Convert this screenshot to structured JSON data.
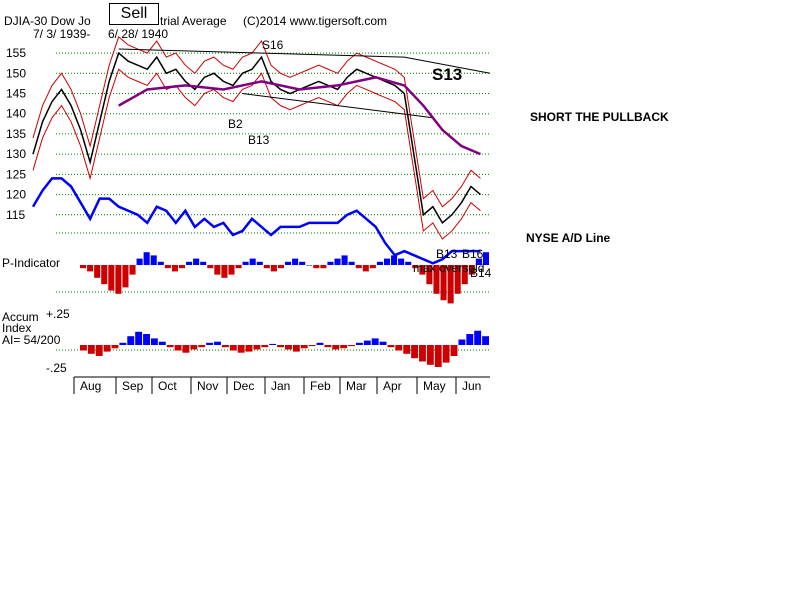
{
  "header": {
    "title": "DJIA-30  Dow Jones Industrial Average",
    "title_visible_prefix": "DJIA-30  Dow Jo",
    "title_visible_suffix": "trial Average",
    "copyright": "(C)2014 www.tigersoft.com",
    "date_range_left": "7/ 3/ 1939-",
    "date_range_right": "6/ 28/ 1940",
    "signal_box": "Sell"
  },
  "chart_data": {
    "type": "line",
    "x_months": [
      "Aug",
      "Sep",
      "Oct",
      "Nov",
      "Dec",
      "Jan",
      "Feb",
      "Mar",
      "Apr",
      "May",
      "Jun"
    ],
    "price_axis": {
      "ticks": [
        155,
        150,
        145,
        140,
        135,
        130,
        125,
        120,
        115
      ],
      "range": [
        110,
        157
      ]
    },
    "price_series": {
      "name": "DJIA",
      "color": "#000000",
      "points": [
        [
          0,
          130
        ],
        [
          5,
          138
        ],
        [
          10,
          143
        ],
        [
          15,
          146
        ],
        [
          20,
          142
        ],
        [
          25,
          136
        ],
        [
          30,
          128
        ],
        [
          35,
          138
        ],
        [
          40,
          148
        ],
        [
          45,
          155
        ],
        [
          50,
          153
        ],
        [
          55,
          152
        ],
        [
          60,
          151
        ],
        [
          65,
          154
        ],
        [
          70,
          150
        ],
        [
          75,
          151
        ],
        [
          80,
          148
        ],
        [
          85,
          146
        ],
        [
          90,
          149
        ],
        [
          95,
          150
        ],
        [
          100,
          148
        ],
        [
          105,
          147
        ],
        [
          110,
          150
        ],
        [
          115,
          151
        ],
        [
          120,
          154
        ],
        [
          125,
          148
        ],
        [
          130,
          146
        ],
        [
          135,
          145
        ],
        [
          140,
          146
        ],
        [
          145,
          147
        ],
        [
          150,
          148
        ],
        [
          155,
          147
        ],
        [
          160,
          146
        ],
        [
          165,
          149
        ],
        [
          170,
          151
        ],
        [
          175,
          150
        ],
        [
          180,
          149
        ],
        [
          185,
          148
        ],
        [
          190,
          147
        ],
        [
          195,
          145
        ],
        [
          200,
          130
        ],
        [
          205,
          115
        ],
        [
          210,
          117
        ],
        [
          215,
          113
        ],
        [
          220,
          115
        ],
        [
          225,
          118
        ],
        [
          230,
          122
        ],
        [
          235,
          120
        ]
      ]
    },
    "ma_series": {
      "name": "moving average",
      "color": "#800080",
      "points": [
        [
          45,
          142
        ],
        [
          60,
          146
        ],
        [
          80,
          147
        ],
        [
          100,
          146
        ],
        [
          120,
          148
        ],
        [
          140,
          146
        ],
        [
          160,
          147
        ],
        [
          180,
          149
        ],
        [
          195,
          147
        ],
        [
          205,
          142
        ],
        [
          215,
          136
        ],
        [
          225,
          132
        ],
        [
          235,
          130
        ]
      ]
    },
    "band_color": "#cc0000",
    "trendlines": [
      {
        "label": "upper",
        "points": [
          [
            45,
            156
          ],
          [
            195,
            154
          ],
          [
            240,
            150
          ]
        ]
      },
      {
        "label": "lower",
        "points": [
          [
            110,
            145
          ],
          [
            210,
            139
          ]
        ]
      }
    ],
    "ad_line": {
      "name": "NYSE A/D Line",
      "color": "#0000ff",
      "points": [
        [
          0,
          117
        ],
        [
          5,
          121
        ],
        [
          10,
          124
        ],
        [
          15,
          124
        ],
        [
          20,
          122
        ],
        [
          25,
          118
        ],
        [
          30,
          114
        ],
        [
          35,
          119
        ],
        [
          40,
          119
        ],
        [
          45,
          117
        ],
        [
          50,
          116
        ],
        [
          55,
          115
        ],
        [
          60,
          113
        ],
        [
          65,
          117
        ],
        [
          70,
          116
        ],
        [
          75,
          113
        ],
        [
          80,
          116
        ],
        [
          85,
          112
        ],
        [
          90,
          114
        ],
        [
          95,
          112
        ],
        [
          100,
          113
        ],
        [
          105,
          110
        ],
        [
          110,
          111
        ],
        [
          115,
          114
        ],
        [
          120,
          112
        ],
        [
          125,
          110
        ],
        [
          130,
          112
        ],
        [
          135,
          112
        ],
        [
          140,
          112
        ],
        [
          145,
          113
        ],
        [
          150,
          113
        ],
        [
          155,
          113
        ],
        [
          160,
          113
        ],
        [
          165,
          115
        ],
        [
          170,
          116
        ],
        [
          175,
          114
        ],
        [
          180,
          112
        ],
        [
          185,
          108
        ],
        [
          190,
          105
        ],
        [
          195,
          106
        ],
        [
          200,
          105
        ],
        [
          205,
          104
        ],
        [
          210,
          103
        ],
        [
          215,
          104
        ],
        [
          220,
          106
        ],
        [
          225,
          106
        ],
        [
          230,
          106
        ],
        [
          235,
          106
        ]
      ]
    },
    "annotations": [
      {
        "text": "S16",
        "color": "#000000"
      },
      {
        "text": "S13",
        "color": "#000000",
        "big": true
      },
      {
        "text": "B2",
        "color": "#000000"
      },
      {
        "text": "B13",
        "color": "#000000"
      },
      {
        "text": "B13",
        "color": "#000000"
      },
      {
        "text": "B16",
        "color": "#000000"
      },
      {
        "text": "B14",
        "color": "#000000"
      },
      {
        "text": "max oversold",
        "color": "#000000"
      }
    ],
    "side_notes": {
      "short_note": "SHORT THE PULLBACK",
      "ad_label": "NYSE A/D Line"
    },
    "p_indicator": {
      "label": "P-Indicator",
      "pos_color": "#0000ff",
      "neg_color": "#cc0000",
      "values": [
        -1,
        -2,
        -4,
        -6,
        -8,
        -9,
        -7,
        -3,
        2,
        4,
        3,
        1,
        -1,
        -2,
        -1,
        1,
        2,
        1,
        -1,
        -3,
        -4,
        -3,
        -1,
        1,
        2,
        1,
        -1,
        -2,
        -1,
        1,
        2,
        1,
        0,
        -1,
        -1,
        1,
        2,
        3,
        1,
        -1,
        -2,
        -1,
        1,
        2,
        3,
        2,
        1,
        -1,
        -3,
        -6,
        -9,
        -11,
        -12,
        -9,
        -6,
        -3,
        2,
        4
      ]
    },
    "accum_index": {
      "label_line1": "Accum",
      "label_line2": "Index",
      "ai_text": "AI= 54/200",
      "tick_top": "+.25",
      "tick_bottom": "-.25",
      "pos_color": "#0000ff",
      "neg_color": "#cc0000",
      "values": [
        -0.05,
        -0.08,
        -0.1,
        -0.06,
        -0.03,
        0.02,
        0.08,
        0.12,
        0.1,
        0.06,
        0.03,
        -0.02,
        -0.05,
        -0.07,
        -0.04,
        -0.02,
        0.02,
        0.03,
        -0.02,
        -0.05,
        -0.07,
        -0.06,
        -0.04,
        -0.02,
        0.01,
        -0.02,
        -0.04,
        -0.06,
        -0.03,
        -0.01,
        0.02,
        -0.02,
        -0.04,
        -0.03,
        -0.01,
        0.02,
        0.04,
        0.06,
        0.03,
        -0.02,
        -0.05,
        -0.08,
        -0.12,
        -0.15,
        -0.18,
        -0.2,
        -0.16,
        -0.1,
        0.05,
        0.1,
        0.13,
        0.08
      ]
    }
  }
}
